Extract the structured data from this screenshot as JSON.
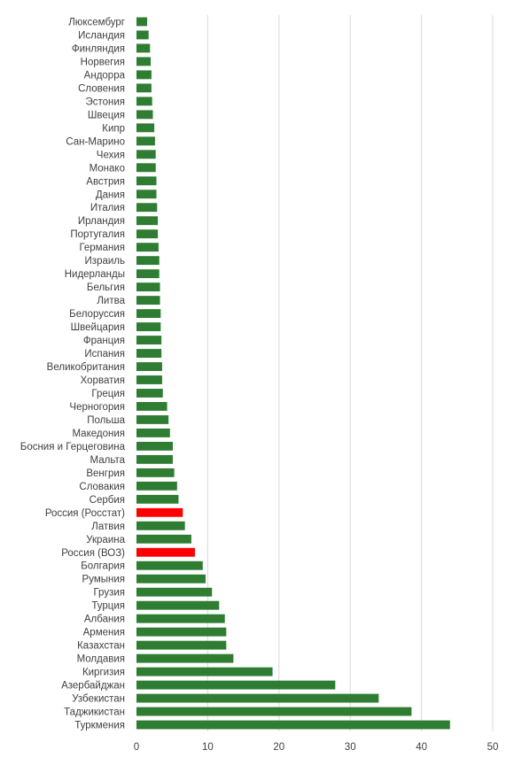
{
  "chart_data": {
    "type": "bar",
    "orientation": "horizontal",
    "title": "",
    "xlabel": "",
    "ylabel": "",
    "xlim": [
      0,
      50
    ],
    "xticks": [
      0,
      10,
      20,
      30,
      40,
      50
    ],
    "grid": "vertical",
    "legend": "none",
    "colors": {
      "default": "#2e7d32",
      "highlight": "#ff0000",
      "grid": "#d9d9d9",
      "text": "#404040"
    },
    "categories": [
      "Люксембург",
      "Исландия",
      "Финляндия",
      "Норвегия",
      "Андорра",
      "Словения",
      "Эстония",
      "Швеция",
      "Кипр",
      "Сан-Марино",
      "Чехия",
      "Монако",
      "Австрия",
      "Дания",
      "Италия",
      "Ирландия",
      "Португалия",
      "Германия",
      "Израиль",
      "Нидерланды",
      "Бельгия",
      "Литва",
      "Белоруссия",
      "Швейцария",
      "Франция",
      "Испания",
      "Великобритания",
      "Хорватия",
      "Греция",
      "Черногория",
      "Польша",
      "Македония",
      "Босния и Герцеговина",
      "Мальта",
      "Венгрия",
      "Словакия",
      "Сербия",
      "Россия (Росстат)",
      "Латвия",
      "Украина",
      "Россия (ВОЗ)",
      "Болгария",
      "Румыния",
      "Грузия",
      "Турция",
      "Албания",
      "Армения",
      "Казахстан",
      "Молдавия",
      "Киргизия",
      "Азербайджан",
      "Узбекистан",
      "Таджикистан",
      "Туркмения"
    ],
    "values": [
      1.5,
      1.7,
      1.9,
      2.0,
      2.1,
      2.1,
      2.2,
      2.3,
      2.5,
      2.6,
      2.7,
      2.7,
      2.8,
      2.8,
      2.9,
      3.0,
      3.0,
      3.1,
      3.2,
      3.2,
      3.3,
      3.3,
      3.4,
      3.4,
      3.5,
      3.5,
      3.6,
      3.6,
      3.7,
      4.3,
      4.5,
      4.7,
      5.1,
      5.1,
      5.3,
      5.7,
      5.9,
      6.5,
      6.8,
      7.7,
      8.2,
      9.3,
      9.7,
      10.6,
      11.6,
      12.4,
      12.6,
      12.6,
      13.6,
      19.1,
      27.9,
      34.0,
      38.6,
      44.0
    ],
    "highlighted": [
      "Россия (Росстат)",
      "Россия (ВОЗ)"
    ]
  }
}
